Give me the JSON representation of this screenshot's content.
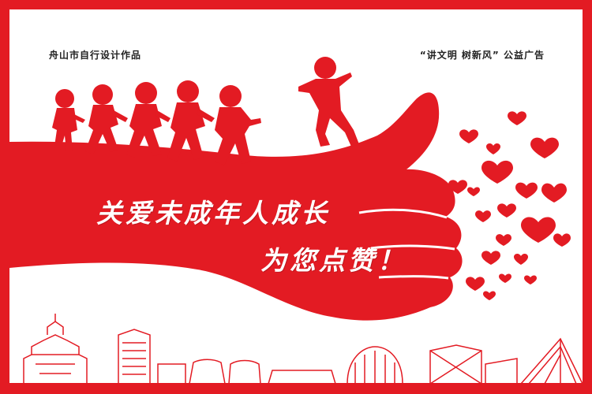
{
  "poster": {
    "credit_left": "舟山市自行设计作品",
    "credit_right": "“讲文明  树新风”  公益广告",
    "slogan_line1": "关爱未成年人成长",
    "slogan_line2": "为您点赞！"
  },
  "colors": {
    "brand_red": "#e31b23",
    "background": "#ffffff"
  }
}
